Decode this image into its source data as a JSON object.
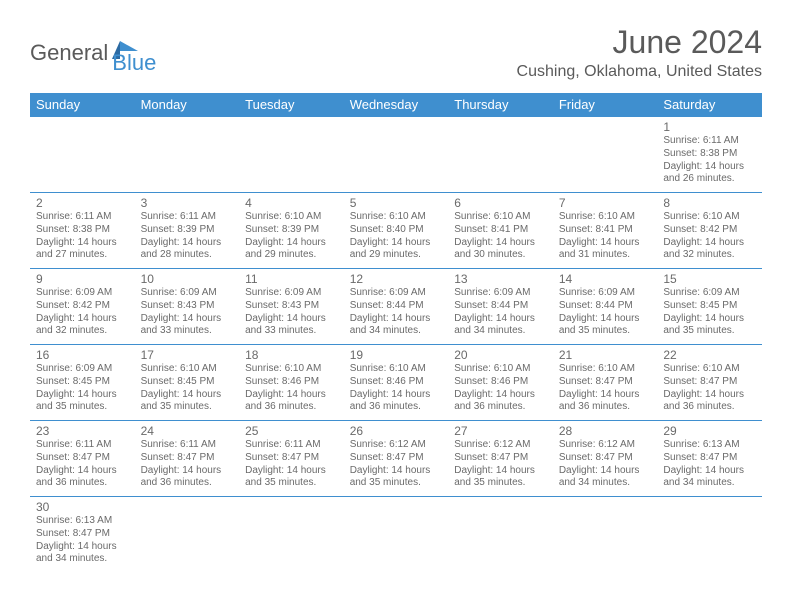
{
  "logo": {
    "text1": "General",
    "text2": "Blue"
  },
  "title": "June 2024",
  "location": "Cushing, Oklahoma, United States",
  "colors": {
    "header_bg": "#3f8fcf",
    "header_text": "#ffffff",
    "cell_border": "#3f8fcf",
    "text": "#6a6a6a",
    "title_text": "#5a5a5a",
    "background": "#ffffff"
  },
  "typography": {
    "title_fontsize": 32,
    "location_fontsize": 16,
    "dayheader_fontsize": 13,
    "daynum_fontsize": 12,
    "info_fontsize": 10
  },
  "day_headers": [
    "Sunday",
    "Monday",
    "Tuesday",
    "Wednesday",
    "Thursday",
    "Friday",
    "Saturday"
  ],
  "weeks": [
    [
      null,
      null,
      null,
      null,
      null,
      null,
      {
        "n": "1",
        "sr": "6:11 AM",
        "ss": "8:38 PM",
        "dl": "14 hours and 26 minutes."
      }
    ],
    [
      {
        "n": "2",
        "sr": "6:11 AM",
        "ss": "8:38 PM",
        "dl": "14 hours and 27 minutes."
      },
      {
        "n": "3",
        "sr": "6:11 AM",
        "ss": "8:39 PM",
        "dl": "14 hours and 28 minutes."
      },
      {
        "n": "4",
        "sr": "6:10 AM",
        "ss": "8:39 PM",
        "dl": "14 hours and 29 minutes."
      },
      {
        "n": "5",
        "sr": "6:10 AM",
        "ss": "8:40 PM",
        "dl": "14 hours and 29 minutes."
      },
      {
        "n": "6",
        "sr": "6:10 AM",
        "ss": "8:41 PM",
        "dl": "14 hours and 30 minutes."
      },
      {
        "n": "7",
        "sr": "6:10 AM",
        "ss": "8:41 PM",
        "dl": "14 hours and 31 minutes."
      },
      {
        "n": "8",
        "sr": "6:10 AM",
        "ss": "8:42 PM",
        "dl": "14 hours and 32 minutes."
      }
    ],
    [
      {
        "n": "9",
        "sr": "6:09 AM",
        "ss": "8:42 PM",
        "dl": "14 hours and 32 minutes."
      },
      {
        "n": "10",
        "sr": "6:09 AM",
        "ss": "8:43 PM",
        "dl": "14 hours and 33 minutes."
      },
      {
        "n": "11",
        "sr": "6:09 AM",
        "ss": "8:43 PM",
        "dl": "14 hours and 33 minutes."
      },
      {
        "n": "12",
        "sr": "6:09 AM",
        "ss": "8:44 PM",
        "dl": "14 hours and 34 minutes."
      },
      {
        "n": "13",
        "sr": "6:09 AM",
        "ss": "8:44 PM",
        "dl": "14 hours and 34 minutes."
      },
      {
        "n": "14",
        "sr": "6:09 AM",
        "ss": "8:44 PM",
        "dl": "14 hours and 35 minutes."
      },
      {
        "n": "15",
        "sr": "6:09 AM",
        "ss": "8:45 PM",
        "dl": "14 hours and 35 minutes."
      }
    ],
    [
      {
        "n": "16",
        "sr": "6:09 AM",
        "ss": "8:45 PM",
        "dl": "14 hours and 35 minutes."
      },
      {
        "n": "17",
        "sr": "6:10 AM",
        "ss": "8:45 PM",
        "dl": "14 hours and 35 minutes."
      },
      {
        "n": "18",
        "sr": "6:10 AM",
        "ss": "8:46 PM",
        "dl": "14 hours and 36 minutes."
      },
      {
        "n": "19",
        "sr": "6:10 AM",
        "ss": "8:46 PM",
        "dl": "14 hours and 36 minutes."
      },
      {
        "n": "20",
        "sr": "6:10 AM",
        "ss": "8:46 PM",
        "dl": "14 hours and 36 minutes."
      },
      {
        "n": "21",
        "sr": "6:10 AM",
        "ss": "8:47 PM",
        "dl": "14 hours and 36 minutes."
      },
      {
        "n": "22",
        "sr": "6:10 AM",
        "ss": "8:47 PM",
        "dl": "14 hours and 36 minutes."
      }
    ],
    [
      {
        "n": "23",
        "sr": "6:11 AM",
        "ss": "8:47 PM",
        "dl": "14 hours and 36 minutes."
      },
      {
        "n": "24",
        "sr": "6:11 AM",
        "ss": "8:47 PM",
        "dl": "14 hours and 36 minutes."
      },
      {
        "n": "25",
        "sr": "6:11 AM",
        "ss": "8:47 PM",
        "dl": "14 hours and 35 minutes."
      },
      {
        "n": "26",
        "sr": "6:12 AM",
        "ss": "8:47 PM",
        "dl": "14 hours and 35 minutes."
      },
      {
        "n": "27",
        "sr": "6:12 AM",
        "ss": "8:47 PM",
        "dl": "14 hours and 35 minutes."
      },
      {
        "n": "28",
        "sr": "6:12 AM",
        "ss": "8:47 PM",
        "dl": "14 hours and 34 minutes."
      },
      {
        "n": "29",
        "sr": "6:13 AM",
        "ss": "8:47 PM",
        "dl": "14 hours and 34 minutes."
      }
    ],
    [
      {
        "n": "30",
        "sr": "6:13 AM",
        "ss": "8:47 PM",
        "dl": "14 hours and 34 minutes."
      },
      null,
      null,
      null,
      null,
      null,
      null
    ]
  ],
  "labels": {
    "sunrise": "Sunrise: ",
    "sunset": "Sunset: ",
    "daylight": "Daylight: "
  }
}
